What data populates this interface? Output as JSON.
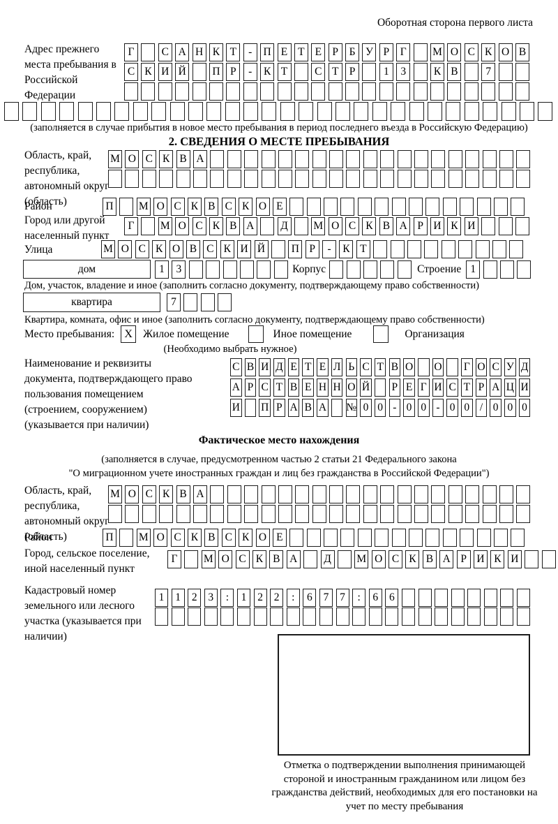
{
  "page": {
    "corner_title": "Оборотная сторона первого листа"
  },
  "prev_address": {
    "label": "Адрес прежнего места пребывания в Российской Федерации",
    "rows": [
      {
        "text": "Г САНКТ-ПЕТЕРБУРГ МОСКОВ",
        "cells": 24
      },
      {
        "text": "СКИЙ ПР-КТ СТР 13 КВ 7",
        "cells": 24
      },
      {
        "text": "",
        "cells": 24
      },
      {
        "text": "",
        "cells": 30
      }
    ],
    "note": "(заполняется в случае прибытия в новое место пребывания в период последнего въезда в Российскую Федерацию)"
  },
  "section2": {
    "heading": "2. СВЕДЕНИЯ О МЕСТЕ ПРЕБЫВАНИЯ",
    "oblast": {
      "label": "Область, край, республика, автономный округ (область)",
      "rows": [
        {
          "text": "МОСКВА",
          "cells": 25
        },
        {
          "text": "",
          "cells": 25
        }
      ]
    },
    "raion": {
      "label": "Район",
      "row": {
        "text": "П МОСКВСКОЕ",
        "cells": 25
      }
    },
    "city": {
      "label": "Город или другой населенный пункт",
      "row": {
        "text": "Г МОСКВА Д МОСКВАРИКИ",
        "cells": 24
      }
    },
    "street": {
      "label": "Улица",
      "row": {
        "text": "МОСКОВСКИЙ ПР-КТ",
        "cells": 25
      }
    },
    "house_row": {
      "house_label": "дом",
      "house_cells": {
        "text": "13",
        "cells": 8
      },
      "korpus_label": "Корпус",
      "korpus_cells": {
        "text": "",
        "cells": 5
      },
      "stroenie_label": "Строение",
      "stroenie_cells": {
        "text": "1",
        "cells": 4
      }
    },
    "house_note": "Дом, участок, владение и иное (заполнить согласно документу, подтверждающему право собственности)",
    "flat_row": {
      "flat_label": "квартира",
      "flat_cells": {
        "text": "7",
        "cells": 4
      }
    },
    "flat_note": "Квартира, комната, офис и иное (заполнить согласно документу, подтверждающему право собственности)",
    "stay_place": {
      "label": "Место пребывания:",
      "options": [
        {
          "label": "Жилое помещение",
          "checked": "X"
        },
        {
          "label": "Иное помещение",
          "checked": ""
        },
        {
          "label": "Организация",
          "checked": ""
        }
      ],
      "note": "(Необходимо выбрать нужное)"
    },
    "document": {
      "label": "Наименование и реквизиты документа, подтверждающего право пользования помещением (строением, сооружением) (указывается при наличии)",
      "rows": [
        {
          "text": "СВИДЕТЕЛЬСТВО О ГОСУД",
          "cells": 21
        },
        {
          "text": "АРСТВЕННОЙ РЕГИСТРАЦИ",
          "cells": 21
        },
        {
          "text": "И ПРАВА №00-00-00/000",
          "cells": 21
        }
      ]
    }
  },
  "fact": {
    "heading": "Фактическое место нахождения",
    "note_line1": "(заполняется в случае, предусмотренном частью 2 статьи 21 Федерального закона",
    "note_line2": "\"О миграционном учете иностранных граждан и лиц без гражданства в Российской Федерации\")",
    "oblast": {
      "label": "Область, край, республика, автономный округ (область)",
      "rows": [
        {
          "text": "МОСКВА",
          "cells": 25
        },
        {
          "text": "",
          "cells": 25
        }
      ]
    },
    "raion": {
      "label": "Район",
      "row": {
        "text": "П МОСКВСКОЕ",
        "cells": 25
      }
    },
    "city": {
      "label": "Город, сельское поселение, иной населенный пункт",
      "row": {
        "text": "Г МОСКВА Д МОСКВАРИКИ",
        "cells": 24
      }
    },
    "kadastr": {
      "label": "Кадастровый номер земельного или лесного участка (указывается при наличии)",
      "rows": [
        {
          "text": "1123:122:677:66",
          "cells": 23
        },
        {
          "text": "",
          "cells": 23
        }
      ]
    },
    "stamp_note": "Отметка о подтверждении выполнения принимающей стороной и иностранным гражданином или лицом без гражданства действий, необходимых для его постановки на учет по месту пребывания"
  }
}
